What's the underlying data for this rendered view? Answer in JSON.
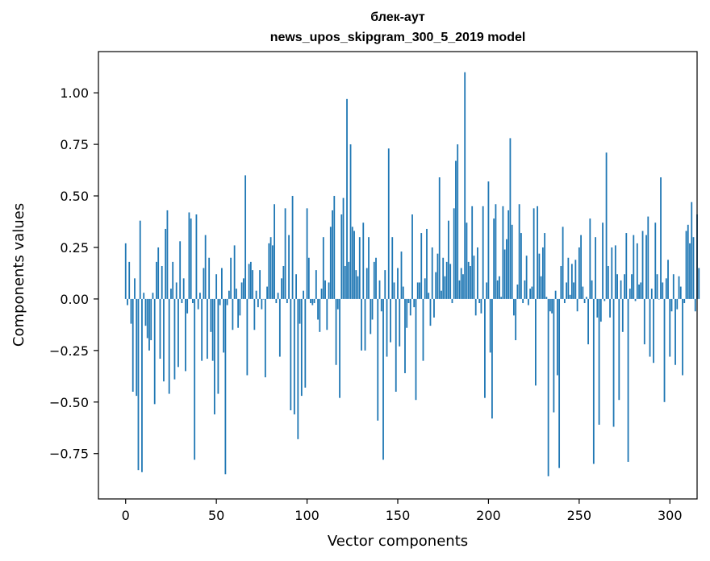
{
  "chart_data": {
    "type": "bar",
    "title": "блек-аут",
    "subtitle": "news_upos_skipgram_300_5_2019 model",
    "xlabel": "Vector components",
    "ylabel": "Components values",
    "xlim": [
      -15,
      315
    ],
    "ylim": [
      -0.97,
      1.2
    ],
    "xticks": [
      0,
      50,
      100,
      150,
      200,
      250,
      300
    ],
    "yticks": [
      -0.75,
      -0.5,
      -0.25,
      0.0,
      0.25,
      0.5,
      0.75,
      1.0
    ],
    "ytick_labels": [
      "−0.75",
      "−0.50",
      "−0.25",
      "0.00",
      "0.25",
      "0.50",
      "0.75",
      "1.00"
    ],
    "bar_color": "#1f77b4",
    "grid": false,
    "legend": "none",
    "values": [
      0.27,
      -0.03,
      0.18,
      -0.12,
      -0.45,
      0.1,
      -0.47,
      -0.83,
      0.38,
      -0.84,
      0.03,
      -0.13,
      -0.19,
      -0.25,
      -0.2,
      0.03,
      -0.51,
      0.18,
      0.25,
      -0.29,
      0.16,
      -0.4,
      0.34,
      0.43,
      -0.46,
      0.05,
      0.18,
      -0.39,
      0.08,
      -0.33,
      0.28,
      -0.02,
      0.1,
      -0.35,
      -0.07,
      0.42,
      0.39,
      -0.02,
      -0.78,
      0.41,
      -0.05,
      0.03,
      -0.3,
      0.15,
      0.31,
      -0.29,
      0.2,
      -0.16,
      -0.3,
      -0.56,
      0.12,
      -0.46,
      -0.03,
      0.15,
      -0.26,
      -0.85,
      -0.03,
      0.04,
      0.2,
      -0.15,
      0.26,
      0.05,
      -0.14,
      -0.08,
      0.08,
      0.1,
      0.6,
      -0.37,
      0.17,
      0.18,
      0.14,
      -0.15,
      0.04,
      -0.04,
      0.14,
      -0.05,
      0.0,
      -0.38,
      0.06,
      0.27,
      0.3,
      0.26,
      0.46,
      -0.02,
      0.03,
      -0.28,
      0.1,
      0.16,
      0.44,
      -0.02,
      0.31,
      -0.54,
      0.5,
      -0.56,
      0.12,
      -0.68,
      -0.12,
      -0.47,
      0.04,
      -0.43,
      0.44,
      0.2,
      -0.02,
      -0.03,
      -0.02,
      0.14,
      -0.1,
      -0.16,
      0.05,
      0.3,
      0.09,
      -0.15,
      0.08,
      0.35,
      0.43,
      0.5,
      -0.32,
      -0.05,
      -0.48,
      0.41,
      0.49,
      0.16,
      0.97,
      0.18,
      0.75,
      0.35,
      0.33,
      0.14,
      0.11,
      0.3,
      -0.25,
      0.37,
      -0.25,
      0.15,
      0.3,
      -0.17,
      -0.1,
      0.18,
      0.2,
      -0.59,
      0.09,
      -0.06,
      -0.78,
      0.14,
      -0.28,
      0.73,
      -0.21,
      0.3,
      0.08,
      -0.45,
      0.15,
      -0.23,
      0.23,
      0.06,
      -0.36,
      -0.14,
      -0.02,
      -0.08,
      0.41,
      -0.04,
      -0.49,
      0.08,
      0.08,
      0.32,
      -0.3,
      0.1,
      0.34,
      0.03,
      -0.13,
      0.25,
      -0.09,
      0.13,
      0.22,
      0.59,
      0.04,
      0.2,
      0.11,
      0.18,
      0.38,
      0.17,
      -0.02,
      0.44,
      0.67,
      0.75,
      0.09,
      0.15,
      0.12,
      1.1,
      0.37,
      0.18,
      0.16,
      0.45,
      0.21,
      -0.08,
      0.25,
      -0.02,
      -0.07,
      0.45,
      -0.48,
      0.08,
      0.57,
      -0.26,
      -0.58,
      0.39,
      0.46,
      0.09,
      0.11,
      0.01,
      0.45,
      0.24,
      0.29,
      0.43,
      0.78,
      0.36,
      -0.08,
      -0.2,
      0.07,
      0.46,
      0.32,
      -0.02,
      0.09,
      0.21,
      -0.03,
      0.05,
      0.06,
      0.44,
      -0.42,
      0.45,
      0.22,
      0.11,
      0.25,
      0.32,
      0.01,
      -0.86,
      -0.06,
      -0.07,
      -0.55,
      0.04,
      -0.37,
      -0.82,
      0.16,
      0.35,
      -0.02,
      0.08,
      0.2,
      0.02,
      0.17,
      0.08,
      0.19,
      -0.06,
      0.25,
      0.31,
      0.06,
      -0.02,
      0.01,
      -0.22,
      0.39,
      0.09,
      -0.8,
      0.3,
      -0.09,
      -0.61,
      -0.11,
      0.37,
      -0.01,
      0.71,
      0.16,
      -0.09,
      0.25,
      -0.62,
      0.26,
      0.12,
      -0.49,
      0.09,
      -0.16,
      0.12,
      0.32,
      -0.79,
      0.05,
      0.12,
      0.31,
      -0.01,
      0.27,
      0.07,
      0.08,
      0.33,
      -0.22,
      0.31,
      0.4,
      -0.28,
      0.05,
      -0.31,
      0.37,
      0.12,
      0.0,
      0.59,
      0.08,
      -0.5,
      0.1,
      0.19,
      -0.28,
      -0.06,
      0.12,
      -0.32,
      -0.05,
      0.11,
      0.06,
      -0.37,
      -0.02,
      0.33,
      0.36,
      0.27,
      0.47,
      0.3,
      -0.06,
      0.41,
      0.15
    ]
  }
}
